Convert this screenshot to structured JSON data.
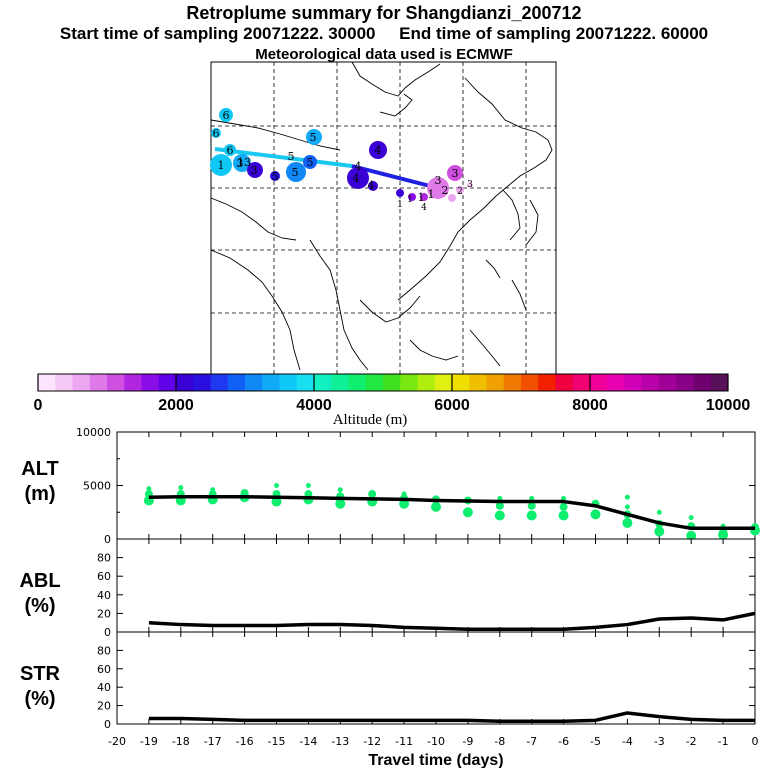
{
  "title": "Retroplume summary for Shangdianzi_200712",
  "start_label": "Start time of sampling 20071222. 30000",
  "end_label": "End time of sampling 20071222. 60000",
  "meteo_label": "Meteorological data used is ECMWF",
  "colorbar": {
    "title": "Altitude (m)",
    "ticks": [
      "0",
      "2000",
      "4000",
      "6000",
      "8000",
      "10000"
    ],
    "colors": [
      "#fde6fd",
      "#f5c8f5",
      "#eda6f0",
      "#e07ae8",
      "#cf50e0",
      "#b126e0",
      "#8a0ce6",
      "#6100e8",
      "#3a00d6",
      "#2a10e0",
      "#2038f0",
      "#1060f5",
      "#1088f5",
      "#10aaf5",
      "#10c8f5",
      "#18e0f0",
      "#10f0c0",
      "#10f098",
      "#10ee70",
      "#20e840",
      "#40e020",
      "#78e810",
      "#b0ee10",
      "#e0f010",
      "#f0e000",
      "#f0c000",
      "#f0a000",
      "#f07800",
      "#f05000",
      "#f02000",
      "#f00040",
      "#f00070",
      "#f0009a",
      "#e800b0",
      "#d000b8",
      "#b800a8",
      "#a00098",
      "#880088",
      "#700070",
      "#581058"
    ]
  },
  "map_labels": [
    "6",
    "6",
    "6",
    "5",
    "5",
    "3",
    "1",
    "13",
    "5",
    "3",
    "5",
    "5",
    "4",
    "4",
    "4",
    "4",
    "3",
    "3",
    "2",
    "1",
    "1",
    "4",
    "3",
    "2",
    "1",
    "1"
  ],
  "chart_data": [
    {
      "type": "line",
      "panel": "ALT",
      "ylabel": [
        "ALT",
        "(m)"
      ],
      "xlabel": "Travel time (days)",
      "xlim": [
        -20,
        0
      ],
      "ylim": [
        0,
        10000
      ],
      "yticks": [
        "0",
        "5000",
        "10000"
      ],
      "xticks": [
        "-20",
        "-19",
        "-18",
        "-17",
        "-16",
        "-15",
        "-14",
        "-13",
        "-12",
        "-11",
        "-10",
        "-9",
        "-8",
        "-7",
        "-6",
        "-5",
        "-4",
        "-3",
        "-2",
        "-1",
        "0"
      ],
      "x": [
        -19,
        -18,
        -17,
        -16,
        -15,
        -14,
        -13,
        -12,
        -11,
        -10,
        -9,
        -8,
        -7,
        -6,
        -5,
        -4,
        -3,
        -2,
        -1,
        0
      ],
      "values": [
        3900,
        3950,
        3950,
        3950,
        3900,
        3850,
        3800,
        3750,
        3700,
        3600,
        3550,
        3500,
        3500,
        3500,
        3100,
        2300,
        1500,
        1000,
        1000,
        1000
      ],
      "clusters_y": [
        [
          3600,
          4200,
          4700
        ],
        [
          3600,
          4200,
          4800
        ],
        [
          3700,
          4200,
          4600
        ],
        [
          3900,
          4300
        ],
        [
          3500,
          4200,
          5000
        ],
        [
          3700,
          4200,
          5000
        ],
        [
          3300,
          4000,
          4600
        ],
        [
          3500,
          4200
        ],
        [
          3300,
          3800,
          4200
        ],
        [
          3000,
          3700
        ],
        [
          2500,
          3600
        ],
        [
          2200,
          3100,
          3800
        ],
        [
          2200,
          3100,
          3800
        ],
        [
          2200,
          3000,
          3800
        ],
        [
          2300,
          3300
        ],
        [
          1500,
          2300,
          3000,
          3900
        ],
        [
          700,
          1400,
          2500
        ],
        [
          300,
          1200,
          2000
        ],
        [
          400,
          700,
          1200
        ],
        [
          800,
          1100
        ]
      ]
    },
    {
      "type": "line",
      "panel": "ABL",
      "ylabel": [
        "ABL",
        "(%)"
      ],
      "xlim": [
        -20,
        0
      ],
      "ylim": [
        0,
        100
      ],
      "yticks": [
        "0",
        "20",
        "40",
        "60",
        "80"
      ],
      "x": [
        -19,
        -18,
        -17,
        -16,
        -15,
        -14,
        -13,
        -12,
        -11,
        -10,
        -9,
        -8,
        -7,
        -6,
        -5,
        -4,
        -3,
        -2,
        -1,
        0
      ],
      "values": [
        10,
        8,
        7,
        7,
        7,
        8,
        8,
        7,
        5,
        4,
        3,
        3,
        3,
        3,
        5,
        8,
        14,
        15,
        13,
        20
      ]
    },
    {
      "type": "line",
      "panel": "STR",
      "ylabel": [
        "STR",
        "(%)"
      ],
      "xlim": [
        -20,
        0
      ],
      "ylim": [
        0,
        100
      ],
      "yticks": [
        "0",
        "20",
        "40",
        "60",
        "80"
      ],
      "x": [
        -19,
        -18,
        -17,
        -16,
        -15,
        -14,
        -13,
        -12,
        -11,
        -10,
        -9,
        -8,
        -7,
        -6,
        -5,
        -4,
        -3,
        -2,
        -1,
        0
      ],
      "values": [
        6,
        6,
        5,
        4,
        4,
        4,
        4,
        4,
        4,
        4,
        4,
        3,
        3,
        3,
        4,
        12,
        8,
        5,
        4,
        4
      ]
    }
  ]
}
